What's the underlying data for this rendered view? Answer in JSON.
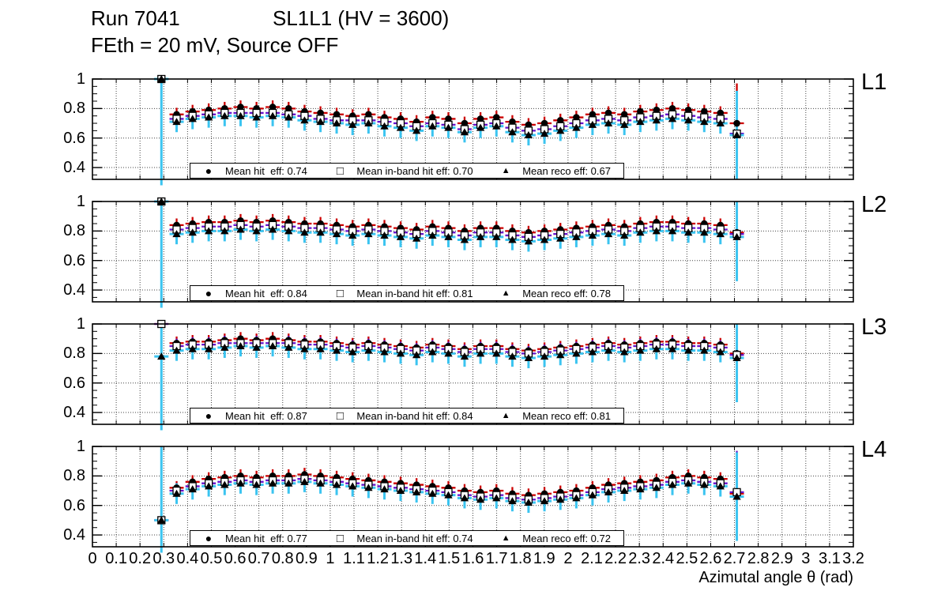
{
  "title": {
    "run": "Run 7041",
    "chamber": "SL1L1 (HV = 3600)",
    "conditions": "FEth = 20 mV, Source OFF"
  },
  "axes": {
    "x_title": "Azimutal angle θ (rad)",
    "x_tick_labels": [
      "0",
      "0.1",
      "0.2",
      "0.3",
      "0.4",
      "0.5",
      "0.6",
      "0.7",
      "0.8",
      "0.9",
      "1",
      "1.1",
      "1.2",
      "1.3",
      "1.4",
      "1.5",
      "1.6",
      "1.7",
      "1.8",
      "1.9",
      "2",
      "2.1",
      "2.2",
      "2.3",
      "2.4",
      "2.5",
      "2.6",
      "2.7",
      "2.8",
      "2.9",
      "3",
      "3.1",
      "3.2"
    ],
    "y_tick_labels": [
      "1",
      "0.8",
      "0.6",
      "0.4"
    ],
    "y_tick_values": [
      1.0,
      0.8,
      0.6,
      0.4
    ],
    "xlim": [
      0,
      3.2
    ],
    "ylim": [
      0.32,
      1.0
    ],
    "grid": true
  },
  "colors": {
    "hit": "#cc0000",
    "inband": "#6611cc",
    "reco": "#3bc4f0",
    "marker": "#000000",
    "grid": "#444444"
  },
  "x_points": [
    0.29,
    0.354,
    0.421,
    0.489,
    0.556,
    0.623,
    0.69,
    0.758,
    0.825,
    0.892,
    0.959,
    1.027,
    1.094,
    1.161,
    1.228,
    1.296,
    1.363,
    1.43,
    1.497,
    1.565,
    1.632,
    1.699,
    1.766,
    1.834,
    1.901,
    1.968,
    2.035,
    2.103,
    2.17,
    2.237,
    2.304,
    2.372,
    2.439,
    2.506,
    2.573,
    2.641,
    2.71
  ],
  "chart_data": [
    {
      "type": "scatter",
      "panel_label": "L1",
      "x_ref": "x_points",
      "legend_position": "bottom-center",
      "series": [
        {
          "name": "Mean hit  eff: 0.74",
          "mean": 0.74,
          "marker": "filled-circle",
          "color": "#cc0000",
          "yerr": 0.045,
          "values": [
            1.0,
            0.76,
            0.78,
            0.79,
            0.8,
            0.81,
            0.8,
            0.81,
            0.8,
            0.78,
            0.77,
            0.76,
            0.75,
            0.76,
            0.74,
            0.73,
            0.71,
            0.74,
            0.73,
            0.7,
            0.73,
            0.74,
            0.71,
            0.69,
            0.7,
            0.72,
            0.74,
            0.76,
            0.77,
            0.76,
            0.78,
            0.79,
            0.8,
            0.79,
            0.78,
            0.77,
            0.7
          ]
        },
        {
          "name": "Mean in-band hit eff: 0.70",
          "mean": 0.7,
          "marker": "open-square",
          "color": "#6611cc",
          "yerr": 0.05,
          "values": [
            1.0,
            0.73,
            0.75,
            0.76,
            0.77,
            0.77,
            0.77,
            0.77,
            0.76,
            0.75,
            0.73,
            0.72,
            0.72,
            0.72,
            0.71,
            0.7,
            0.68,
            0.7,
            0.69,
            0.66,
            0.69,
            0.7,
            0.67,
            0.65,
            0.66,
            0.68,
            0.7,
            0.72,
            0.73,
            0.72,
            0.74,
            0.75,
            0.76,
            0.75,
            0.74,
            0.73,
            0.63
          ]
        },
        {
          "name": "Mean reco eff: 0.67",
          "mean": 0.67,
          "marker": "filled-triangle",
          "color": "#3bc4f0",
          "yerr": 0.07,
          "values": [
            1.0,
            0.71,
            0.73,
            0.74,
            0.75,
            0.75,
            0.74,
            0.75,
            0.74,
            0.72,
            0.71,
            0.7,
            0.69,
            0.7,
            0.68,
            0.67,
            0.65,
            0.68,
            0.67,
            0.64,
            0.67,
            0.68,
            0.64,
            0.62,
            0.63,
            0.65,
            0.67,
            0.69,
            0.7,
            0.69,
            0.71,
            0.72,
            0.73,
            0.72,
            0.71,
            0.7,
            0.62
          ]
        }
      ]
    },
    {
      "type": "scatter",
      "panel_label": "L2",
      "x_ref": "x_points",
      "legend_position": "bottom-center",
      "series": [
        {
          "name": "Mean hit  eff: 0.84",
          "mean": 0.84,
          "marker": "filled-circle",
          "color": "#cc0000",
          "yerr": 0.045,
          "values": [
            1.0,
            0.84,
            0.85,
            0.86,
            0.86,
            0.87,
            0.86,
            0.87,
            0.86,
            0.85,
            0.85,
            0.84,
            0.83,
            0.84,
            0.83,
            0.82,
            0.81,
            0.83,
            0.82,
            0.8,
            0.82,
            0.82,
            0.8,
            0.79,
            0.8,
            0.81,
            0.82,
            0.83,
            0.84,
            0.83,
            0.85,
            0.86,
            0.86,
            0.85,
            0.85,
            0.84,
            0.79
          ]
        },
        {
          "name": "Mean in-band hit eff: 0.81",
          "mean": 0.81,
          "marker": "open-square",
          "color": "#6611cc",
          "yerr": 0.05,
          "values": [
            1.0,
            0.81,
            0.82,
            0.83,
            0.83,
            0.84,
            0.83,
            0.84,
            0.83,
            0.82,
            0.82,
            0.81,
            0.8,
            0.81,
            0.8,
            0.79,
            0.78,
            0.8,
            0.79,
            0.77,
            0.79,
            0.79,
            0.77,
            0.76,
            0.77,
            0.78,
            0.79,
            0.8,
            0.81,
            0.8,
            0.82,
            0.83,
            0.83,
            0.82,
            0.82,
            0.81,
            0.78
          ]
        },
        {
          "name": "Mean reco eff: 0.78",
          "mean": 0.78,
          "marker": "filled-triangle",
          "color": "#3bc4f0",
          "yerr": 0.07,
          "values": [
            1.0,
            0.78,
            0.79,
            0.8,
            0.8,
            0.81,
            0.8,
            0.81,
            0.8,
            0.79,
            0.79,
            0.78,
            0.77,
            0.78,
            0.77,
            0.76,
            0.75,
            0.77,
            0.76,
            0.74,
            0.76,
            0.76,
            0.74,
            0.73,
            0.74,
            0.75,
            0.76,
            0.77,
            0.78,
            0.77,
            0.79,
            0.8,
            0.8,
            0.79,
            0.79,
            0.78,
            0.76
          ]
        }
      ]
    },
    {
      "type": "scatter",
      "panel_label": "L3",
      "x_ref": "x_points",
      "legend_position": "bottom-center",
      "series": [
        {
          "name": "Mean hit  eff: 0.87",
          "mean": 0.87,
          "marker": "filled-circle",
          "color": "#cc0000",
          "yerr": 0.045,
          "values": [
            1.0,
            0.87,
            0.88,
            0.88,
            0.89,
            0.9,
            0.89,
            0.9,
            0.89,
            0.88,
            0.88,
            0.87,
            0.86,
            0.87,
            0.86,
            0.85,
            0.84,
            0.86,
            0.85,
            0.83,
            0.85,
            0.85,
            0.83,
            0.82,
            0.83,
            0.84,
            0.85,
            0.86,
            0.87,
            0.86,
            0.87,
            0.88,
            0.88,
            0.87,
            0.87,
            0.86,
            0.8
          ]
        },
        {
          "name": "Mean in-band hit eff: 0.84",
          "mean": 0.84,
          "marker": "open-square",
          "color": "#6611cc",
          "yerr": 0.05,
          "values": [
            1.0,
            0.85,
            0.86,
            0.86,
            0.87,
            0.87,
            0.87,
            0.87,
            0.87,
            0.86,
            0.86,
            0.85,
            0.84,
            0.85,
            0.84,
            0.83,
            0.82,
            0.84,
            0.83,
            0.81,
            0.83,
            0.83,
            0.81,
            0.8,
            0.81,
            0.82,
            0.83,
            0.84,
            0.85,
            0.84,
            0.85,
            0.86,
            0.86,
            0.85,
            0.85,
            0.84,
            0.79
          ]
        },
        {
          "name": "Mean reco eff: 0.81",
          "mean": 0.81,
          "marker": "filled-triangle",
          "color": "#3bc4f0",
          "yerr": 0.07,
          "values": [
            0.78,
            0.82,
            0.83,
            0.83,
            0.84,
            0.85,
            0.84,
            0.85,
            0.84,
            0.83,
            0.83,
            0.82,
            0.81,
            0.82,
            0.81,
            0.8,
            0.79,
            0.81,
            0.8,
            0.78,
            0.8,
            0.8,
            0.78,
            0.77,
            0.78,
            0.79,
            0.8,
            0.81,
            0.82,
            0.81,
            0.82,
            0.83,
            0.83,
            0.82,
            0.82,
            0.81,
            0.77
          ]
        }
      ]
    },
    {
      "type": "scatter",
      "panel_label": "L4",
      "x_ref": "x_points",
      "legend_position": "bottom-center",
      "series": [
        {
          "name": "Mean hit  eff: 0.77",
          "mean": 0.77,
          "marker": "filled-circle",
          "color": "#cc0000",
          "yerr": 0.045,
          "values": [
            0.5,
            0.72,
            0.76,
            0.78,
            0.79,
            0.8,
            0.79,
            0.8,
            0.8,
            0.81,
            0.8,
            0.79,
            0.78,
            0.77,
            0.76,
            0.75,
            0.74,
            0.73,
            0.72,
            0.7,
            0.69,
            0.7,
            0.68,
            0.67,
            0.68,
            0.69,
            0.7,
            0.72,
            0.74,
            0.75,
            0.76,
            0.77,
            0.79,
            0.8,
            0.79,
            0.78,
            0.68
          ]
        },
        {
          "name": "Mean in-band hit eff: 0.74",
          "mean": 0.74,
          "marker": "open-square",
          "color": "#6611cc",
          "yerr": 0.05,
          "values": [
            0.5,
            0.7,
            0.73,
            0.75,
            0.76,
            0.77,
            0.76,
            0.77,
            0.77,
            0.78,
            0.77,
            0.76,
            0.75,
            0.74,
            0.73,
            0.72,
            0.71,
            0.7,
            0.69,
            0.67,
            0.66,
            0.67,
            0.65,
            0.64,
            0.65,
            0.66,
            0.67,
            0.69,
            0.71,
            0.72,
            0.73,
            0.74,
            0.76,
            0.77,
            0.76,
            0.75,
            0.69
          ]
        },
        {
          "name": "Mean reco eff: 0.72",
          "mean": 0.72,
          "marker": "filled-triangle",
          "color": "#3bc4f0",
          "yerr": 0.07,
          "values": [
            0.5,
            0.68,
            0.71,
            0.73,
            0.74,
            0.75,
            0.74,
            0.75,
            0.75,
            0.76,
            0.75,
            0.74,
            0.73,
            0.72,
            0.71,
            0.7,
            0.69,
            0.68,
            0.67,
            0.65,
            0.64,
            0.65,
            0.63,
            0.62,
            0.63,
            0.64,
            0.65,
            0.67,
            0.69,
            0.7,
            0.71,
            0.72,
            0.74,
            0.75,
            0.74,
            0.73,
            0.66
          ]
        }
      ]
    }
  ]
}
